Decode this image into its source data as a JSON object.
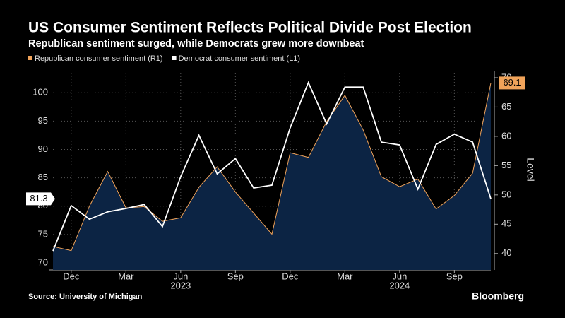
{
  "chart_data": {
    "type": "line",
    "title": "US Consumer Sentiment Reflects Political Divide Post Election",
    "subtitle": "Republican sentiment surged, while Democrats grew more downbeat",
    "categories": [
      null,
      "Dec",
      null,
      null,
      "Mar",
      null,
      null,
      "Jun",
      null,
      null,
      "Sep",
      null,
      null,
      "Dec",
      null,
      null,
      "Mar",
      null,
      null,
      "Jun",
      null,
      null,
      "Sep",
      null,
      null
    ],
    "year_labels": [
      "2023",
      "2024"
    ],
    "series": [
      {
        "name": "Republican consumer sentiment (R1)",
        "color": "#f0a35a",
        "axis": "y2",
        "area_color": "#0c2444",
        "values": [
          41.2,
          40.5,
          48.1,
          54.0,
          47.8,
          48.0,
          45.5,
          46.1,
          51.3,
          54.8,
          50.5,
          46.9,
          43.3,
          57.2,
          56.4,
          62.5,
          67.0,
          61.1,
          53.1,
          51.4,
          52.7,
          47.6,
          49.9,
          53.7,
          69.1
        ]
      },
      {
        "name": "Democrat consumer sentiment (L1)",
        "color": "#ffffff",
        "values": [
          72.1,
          80.1,
          77.7,
          79.0,
          79.6,
          80.3,
          76.4,
          85.2,
          92.5,
          85.7,
          88.4,
          83.2,
          83.7,
          93.8,
          101.8,
          94.5,
          101.0,
          101.0,
          91.3,
          90.8,
          83.0,
          90.9,
          92.7,
          91.3,
          81.3
        ]
      }
    ],
    "ylim": [
      68.75,
      103.9
    ],
    "yticks": [
      70,
      75,
      80,
      85,
      90,
      95,
      100
    ],
    "y2lim": [
      37.2,
      71.2
    ],
    "y2ticks": [
      40,
      45,
      50,
      55,
      60,
      65,
      70
    ],
    "y2_label": "Level",
    "grid": true,
    "source": "Source: University of Michigan",
    "brand": "Bloomberg"
  }
}
